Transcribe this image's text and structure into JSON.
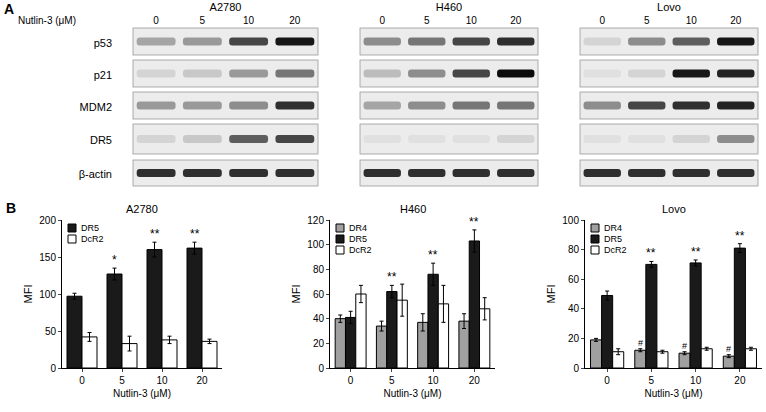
{
  "panel_a": {
    "label": "A",
    "dose_label": "Nutlin-3 (μM)",
    "doses": [
      "0",
      "5",
      "10",
      "20"
    ],
    "proteins": [
      "p53",
      "p21",
      "MDM2",
      "DR5",
      "β-actin"
    ],
    "cell_lines": [
      {
        "name": "A2780",
        "intensity": [
          [
            0.3,
            0.35,
            0.7,
            0.9
          ],
          [
            0.1,
            0.15,
            0.35,
            0.5
          ],
          [
            0.35,
            0.35,
            0.4,
            0.8
          ],
          [
            0.1,
            0.15,
            0.6,
            0.7
          ],
          [
            0.8,
            0.8,
            0.8,
            0.8
          ]
        ]
      },
      {
        "name": "H460",
        "intensity": [
          [
            0.4,
            0.5,
            0.7,
            0.8
          ],
          [
            0.2,
            0.4,
            0.7,
            0.95
          ],
          [
            0.3,
            0.4,
            0.5,
            0.5
          ],
          [
            0.05,
            0.05,
            0.05,
            0.1
          ],
          [
            0.8,
            0.8,
            0.8,
            0.8
          ]
        ]
      },
      {
        "name": "Lovo",
        "intensity": [
          [
            0.1,
            0.4,
            0.6,
            0.9
          ],
          [
            0.05,
            0.1,
            0.9,
            0.85
          ],
          [
            0.4,
            0.7,
            0.8,
            0.85
          ],
          [
            0.05,
            0.05,
            0.1,
            0.4
          ],
          [
            0.8,
            0.8,
            0.8,
            0.8
          ]
        ]
      }
    ]
  },
  "panel_b_label": "B",
  "chart_data": [
    {
      "type": "bar",
      "title": "A2780",
      "x_label": "Nutlin-3 (μM)",
      "y_label": "MFI",
      "categories": [
        "0",
        "5",
        "10",
        "20"
      ],
      "series": [
        {
          "name": "DR5",
          "color": "#1a1a1a",
          "values": [
            97,
            127,
            160,
            162
          ],
          "error": [
            4,
            8,
            10,
            8
          ]
        },
        {
          "name": "DcR2",
          "color": "#ffffff",
          "values": [
            42,
            33,
            38,
            36
          ],
          "error": [
            6,
            10,
            5,
            3
          ]
        }
      ],
      "ylim": [
        0,
        200
      ],
      "yticks": [
        0,
        50,
        100,
        150,
        200
      ],
      "grid": false,
      "legend": "upper left",
      "annotations": [
        {
          "series": "DR5",
          "category": "5",
          "text": "*"
        },
        {
          "series": "DR5",
          "category": "10",
          "text": "**"
        },
        {
          "series": "DR5",
          "category": "20",
          "text": "**"
        }
      ]
    },
    {
      "type": "bar",
      "title": "H460",
      "x_label": "Nutlin-3 (μM)",
      "y_label": "MFI",
      "categories": [
        "0",
        "5",
        "10",
        "20"
      ],
      "series": [
        {
          "name": "DR4",
          "color": "#a0a0a0",
          "values": [
            40,
            34,
            37,
            38
          ],
          "error": [
            3,
            4,
            7,
            6
          ]
        },
        {
          "name": "DR5",
          "color": "#1a1a1a",
          "values": [
            41,
            62,
            76,
            103
          ],
          "error": [
            5,
            5,
            9,
            9
          ]
        },
        {
          "name": "DcR2",
          "color": "#ffffff",
          "values": [
            60,
            55,
            52,
            48
          ],
          "error": [
            7,
            13,
            15,
            9
          ]
        }
      ],
      "ylim": [
        0,
        120
      ],
      "yticks": [
        0,
        20,
        40,
        60,
        80,
        100,
        120
      ],
      "grid": false,
      "legend": "upper left",
      "annotations": [
        {
          "series": "DR5",
          "category": "5",
          "text": "**"
        },
        {
          "series": "DR5",
          "category": "10",
          "text": "**"
        },
        {
          "series": "DR5",
          "category": "20",
          "text": "**"
        }
      ]
    },
    {
      "type": "bar",
      "title": "Lovo",
      "x_label": "Nutlin-3 (μM)",
      "y_label": "MFI",
      "categories": [
        "0",
        "5",
        "10",
        "20"
      ],
      "series": [
        {
          "name": "DR4",
          "color": "#a0a0a0",
          "values": [
            19,
            12,
            10,
            8
          ],
          "error": [
            1,
            1,
            1,
            1
          ]
        },
        {
          "name": "DR5",
          "color": "#1a1a1a",
          "values": [
            49,
            70,
            71,
            81
          ],
          "error": [
            3,
            2,
            2,
            3
          ]
        },
        {
          "name": "DcR2",
          "color": "#ffffff",
          "values": [
            11,
            11,
            13,
            13
          ],
          "error": [
            2,
            1,
            1,
            1
          ]
        }
      ],
      "ylim": [
        0,
        100
      ],
      "yticks": [
        0,
        20,
        40,
        60,
        80,
        100
      ],
      "grid": false,
      "legend": "upper left",
      "annotations": [
        {
          "series": "DR4",
          "category": "5",
          "text": "#"
        },
        {
          "series": "DR4",
          "category": "10",
          "text": "#"
        },
        {
          "series": "DR4",
          "category": "20",
          "text": "#"
        },
        {
          "series": "DR5",
          "category": "5",
          "text": "**"
        },
        {
          "series": "DR5",
          "category": "10",
          "text": "**"
        },
        {
          "series": "DR5",
          "category": "20",
          "text": "**"
        }
      ]
    }
  ]
}
